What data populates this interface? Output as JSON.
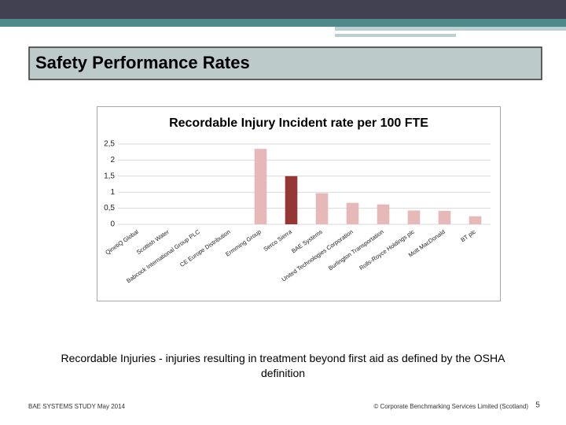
{
  "slide": {
    "title": "Safety Performance Rates",
    "caption": "Recordable Injuries - injuries resulting in treatment beyond first aid as defined by the OSHA definition",
    "footer_left": "BAE SYSTEMS STUDY May 2014",
    "footer_right": "© Corporate Benchmarking Services Limited (Scotland)",
    "page_number": "5"
  },
  "chart_data": {
    "type": "bar",
    "title": "Recordable Injury Incident rate  per 100 FTE",
    "categories": [
      "QinetiQ Global",
      "Scottish Water",
      "Babcock International Group PLC",
      "CE Europe Distribution",
      "Ermming Group",
      "Serco Sierra",
      "BAE Systems",
      "United Technologies Corporation",
      "Burlington Transportation",
      "Rolls-Royce Holdings plc",
      "Mott MacDonald",
      "BT plc"
    ],
    "values": [
      0,
      0,
      0,
      0,
      2.35,
      1.5,
      0.97,
      0.67,
      0.62,
      0.43,
      0.42,
      0.25
    ],
    "colors": [
      "#e6b9b8",
      "#e6b9b8",
      "#e6b9b8",
      "#e6b9b8",
      "#e6b9b8",
      "#953735",
      "#e6b9b8",
      "#e6b9b8",
      "#e6b9b8",
      "#e6b9b8",
      "#e6b9b8",
      "#e6b9b8"
    ],
    "ylim": [
      0,
      2.5
    ],
    "yticks": [
      0,
      {
        "value": 0.5,
        "label": "0,5"
      },
      1,
      {
        "value": 1.5,
        "label": "1,5"
      },
      2,
      {
        "value": 2.5,
        "label": "2,5"
      }
    ],
    "grid": true
  }
}
